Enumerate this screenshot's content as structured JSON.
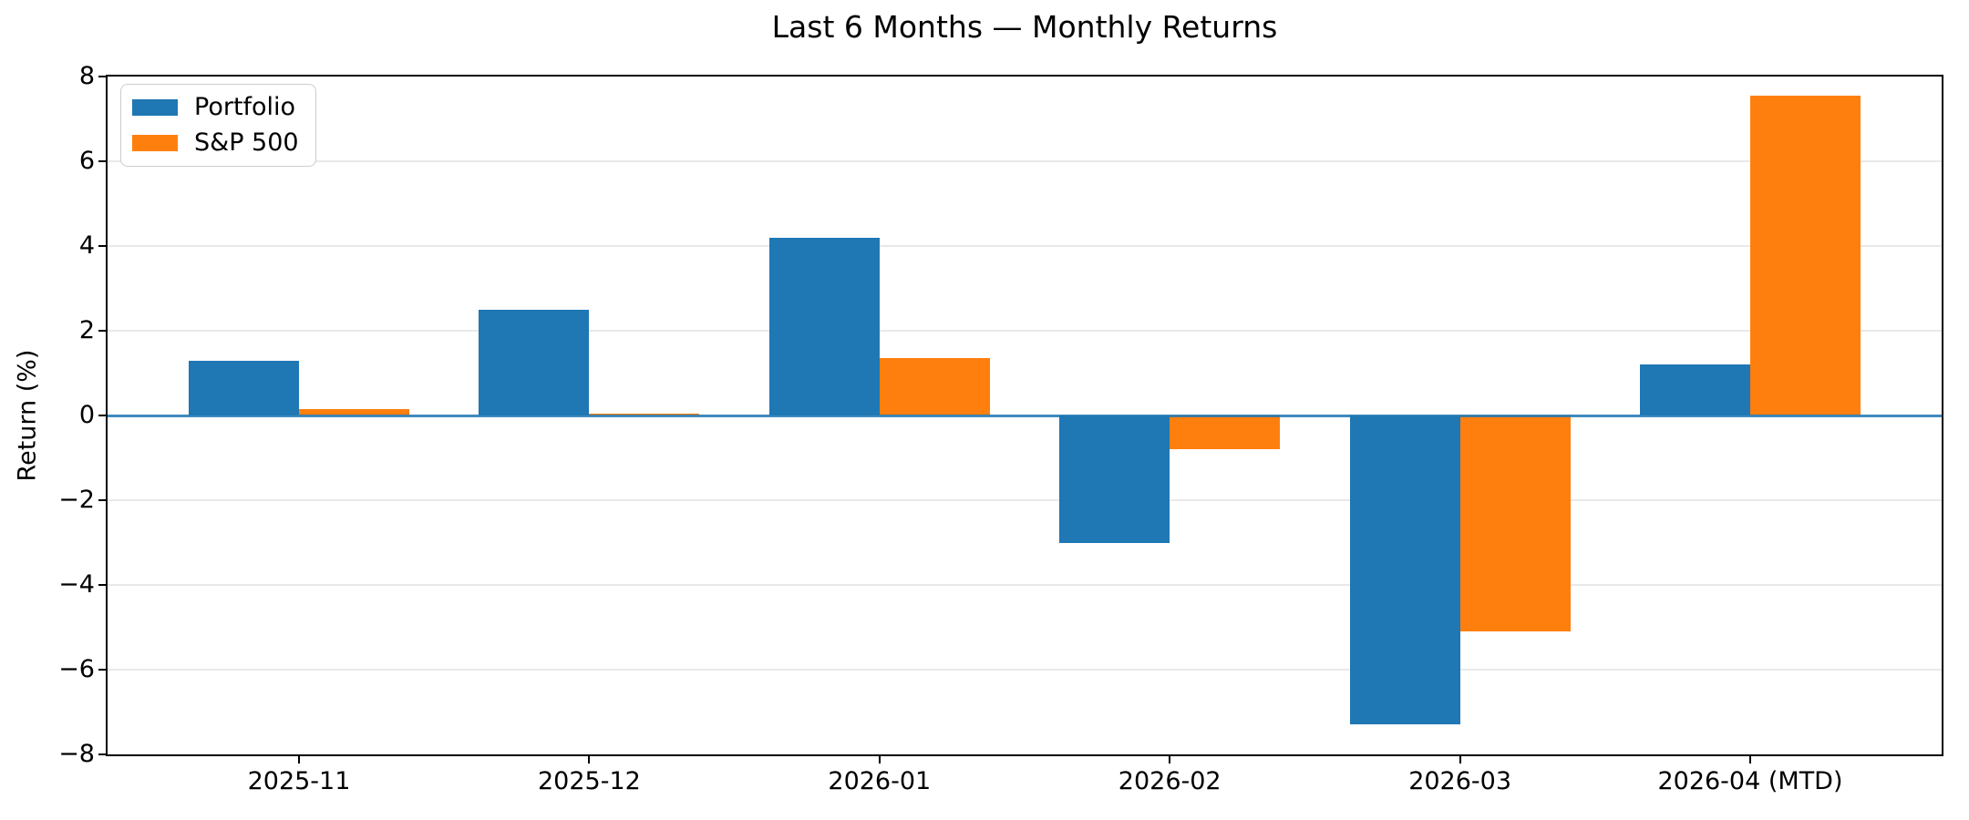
{
  "chart_data": {
    "type": "bar",
    "title": "Last 6 Months — Monthly Returns",
    "xlabel": "",
    "ylabel": "Return (%)",
    "categories": [
      "2025-11",
      "2025-12",
      "2026-01",
      "2026-02",
      "2026-03",
      "2026-04 (MTD)"
    ],
    "series": [
      {
        "name": "Portfolio",
        "color": "#1f77b4",
        "values": [
          1.3,
          2.5,
          4.2,
          -3.0,
          -7.3,
          1.2
        ]
      },
      {
        "name": "S&P 500",
        "color": "#ff7f0e",
        "values": [
          0.15,
          0.05,
          1.35,
          -0.8,
          -5.1,
          7.55
        ]
      }
    ],
    "ylim": [
      -8,
      8
    ],
    "yticks": [
      8,
      6,
      4,
      2,
      0,
      -2,
      -4,
      -6,
      -8
    ],
    "grid": true,
    "grid_color": "#e9e9e9",
    "zero_line_color": "#1f77b4",
    "legend_position": "upper left",
    "background_color": "#ffffff"
  }
}
